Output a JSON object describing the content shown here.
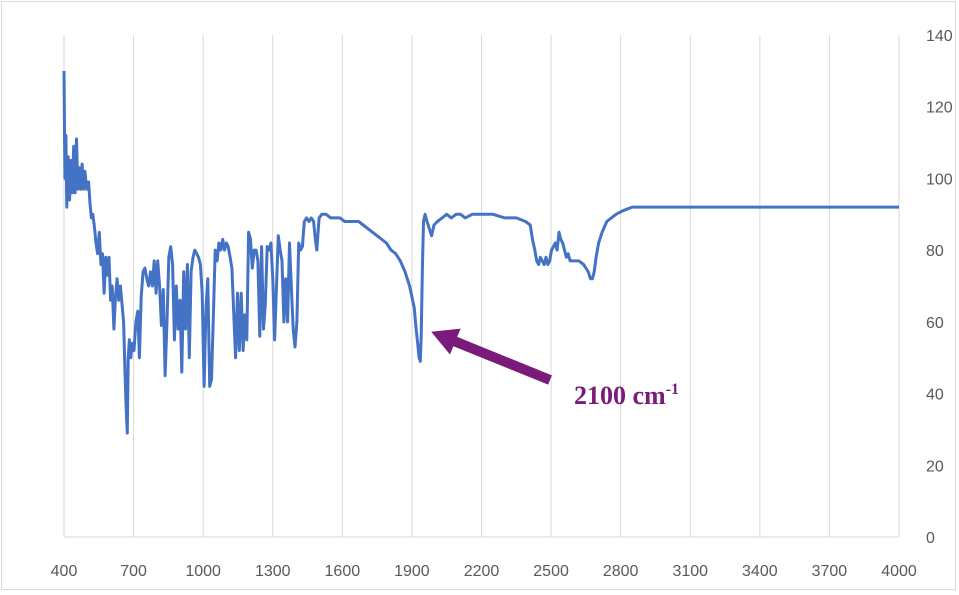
{
  "chart_data": {
    "type": "line",
    "title": "",
    "xlabel": "",
    "ylabel": "",
    "xlim": [
      400,
      4000
    ],
    "ylim": [
      0,
      140
    ],
    "x_ticks": [
      "400",
      "700",
      "1000",
      "1300",
      "1600",
      "1900",
      "2200",
      "2500",
      "2800",
      "3100",
      "3400",
      "3700",
      "4000"
    ],
    "y_ticks": [
      "0",
      "20",
      "40",
      "60",
      "80",
      "100",
      "120",
      "140"
    ],
    "y_axis_side": "right",
    "grid": "vertical",
    "legend": "none",
    "series": [
      {
        "color": "#4472c4",
        "points": [
          [
            400,
            130
          ],
          [
            404,
            100
          ],
          [
            408,
            112
          ],
          [
            412,
            92
          ],
          [
            418,
            106
          ],
          [
            424,
            94
          ],
          [
            430,
            105
          ],
          [
            436,
            96
          ],
          [
            442,
            109
          ],
          [
            448,
            96
          ],
          [
            454,
            111
          ],
          [
            460,
            97
          ],
          [
            466,
            103
          ],
          [
            472,
            97
          ],
          [
            478,
            104
          ],
          [
            484,
            97
          ],
          [
            490,
            102
          ],
          [
            498,
            97
          ],
          [
            506,
            99
          ],
          [
            512,
            93
          ],
          [
            518,
            89
          ],
          [
            524,
            90
          ],
          [
            532,
            86
          ],
          [
            538,
            82
          ],
          [
            545,
            79
          ],
          [
            552,
            85
          ],
          [
            559,
            76
          ],
          [
            566,
            79
          ],
          [
            573,
            68
          ],
          [
            580,
            78
          ],
          [
            587,
            73
          ],
          [
            594,
            78
          ],
          [
            601,
            66
          ],
          [
            608,
            70
          ],
          [
            615,
            58
          ],
          [
            622,
            67
          ],
          [
            629,
            72
          ],
          [
            636,
            66
          ],
          [
            643,
            70
          ],
          [
            650,
            65
          ],
          [
            657,
            60
          ],
          [
            663,
            46
          ],
          [
            667,
            38
          ],
          [
            670,
            33
          ],
          [
            673,
            29
          ],
          [
            677,
            50
          ],
          [
            682,
            55
          ],
          [
            688,
            50
          ],
          [
            694,
            54
          ],
          [
            702,
            52
          ],
          [
            710,
            60
          ],
          [
            718,
            63
          ],
          [
            725,
            50
          ],
          [
            733,
            67
          ],
          [
            741,
            74
          ],
          [
            749,
            75
          ],
          [
            757,
            72
          ],
          [
            765,
            70
          ],
          [
            773,
            74
          ],
          [
            781,
            70
          ],
          [
            789,
            77
          ],
          [
            797,
            68
          ],
          [
            804,
            77
          ],
          [
            812,
            70
          ],
          [
            820,
            59
          ],
          [
            828,
            69
          ],
          [
            836,
            45
          ],
          [
            844,
            60
          ],
          [
            852,
            78
          ],
          [
            860,
            81
          ],
          [
            868,
            76
          ],
          [
            876,
            55
          ],
          [
            884,
            70
          ],
          [
            892,
            58
          ],
          [
            900,
            66
          ],
          [
            908,
            46
          ],
          [
            916,
            74
          ],
          [
            924,
            58
          ],
          [
            932,
            76
          ],
          [
            940,
            50
          ],
          [
            948,
            74
          ],
          [
            956,
            78
          ],
          [
            964,
            80
          ],
          [
            972,
            79
          ],
          [
            980,
            78
          ],
          [
            988,
            76
          ],
          [
            996,
            68
          ],
          [
            1004,
            42
          ],
          [
            1012,
            64
          ],
          [
            1020,
            72
          ],
          [
            1028,
            42
          ],
          [
            1036,
            44
          ],
          [
            1044,
            62
          ],
          [
            1052,
            80
          ],
          [
            1060,
            77
          ],
          [
            1068,
            82
          ],
          [
            1076,
            80
          ],
          [
            1084,
            83
          ],
          [
            1092,
            80
          ],
          [
            1100,
            82
          ],
          [
            1108,
            81
          ],
          [
            1116,
            78
          ],
          [
            1124,
            75
          ],
          [
            1132,
            62
          ],
          [
            1140,
            50
          ],
          [
            1148,
            68
          ],
          [
            1156,
            52
          ],
          [
            1164,
            68
          ],
          [
            1172,
            52
          ],
          [
            1180,
            62
          ],
          [
            1188,
            55
          ],
          [
            1196,
            85
          ],
          [
            1204,
            83
          ],
          [
            1212,
            75
          ],
          [
            1220,
            80
          ],
          [
            1228,
            80
          ],
          [
            1236,
            77
          ],
          [
            1244,
            56
          ],
          [
            1252,
            81
          ],
          [
            1260,
            58
          ],
          [
            1268,
            65
          ],
          [
            1276,
            81
          ],
          [
            1284,
            80
          ],
          [
            1292,
            82
          ],
          [
            1300,
            72
          ],
          [
            1308,
            55
          ],
          [
            1316,
            70
          ],
          [
            1324,
            84
          ],
          [
            1332,
            80
          ],
          [
            1340,
            77
          ],
          [
            1348,
            60
          ],
          [
            1356,
            72
          ],
          [
            1364,
            60
          ],
          [
            1372,
            82
          ],
          [
            1380,
            70
          ],
          [
            1388,
            58
          ],
          [
            1396,
            53
          ],
          [
            1404,
            60
          ],
          [
            1412,
            82
          ],
          [
            1420,
            80
          ],
          [
            1428,
            81
          ],
          [
            1436,
            88
          ],
          [
            1446,
            89
          ],
          [
            1456,
            88
          ],
          [
            1466,
            89
          ],
          [
            1476,
            88
          ],
          [
            1484,
            83
          ],
          [
            1490,
            80
          ],
          [
            1500,
            89
          ],
          [
            1512,
            90
          ],
          [
            1530,
            90
          ],
          [
            1550,
            89
          ],
          [
            1570,
            89
          ],
          [
            1590,
            89
          ],
          [
            1610,
            88
          ],
          [
            1630,
            88
          ],
          [
            1650,
            88
          ],
          [
            1670,
            88
          ],
          [
            1690,
            87
          ],
          [
            1710,
            86
          ],
          [
            1730,
            85
          ],
          [
            1750,
            84
          ],
          [
            1770,
            83
          ],
          [
            1790,
            82
          ],
          [
            1810,
            80
          ],
          [
            1830,
            79
          ],
          [
            1850,
            77
          ],
          [
            1870,
            74
          ],
          [
            1890,
            70
          ],
          [
            1910,
            64
          ],
          [
            1918,
            58
          ],
          [
            1925,
            54
          ],
          [
            1931,
            50
          ],
          [
            1936,
            49
          ],
          [
            1940,
            56
          ],
          [
            1945,
            75
          ],
          [
            1950,
            88
          ],
          [
            1957,
            90
          ],
          [
            1965,
            88
          ],
          [
            1975,
            86
          ],
          [
            1985,
            84
          ],
          [
            1995,
            87
          ],
          [
            2010,
            88
          ],
          [
            2030,
            89
          ],
          [
            2050,
            90
          ],
          [
            2070,
            89
          ],
          [
            2090,
            90
          ],
          [
            2110,
            90
          ],
          [
            2130,
            89
          ],
          [
            2160,
            90
          ],
          [
            2200,
            90
          ],
          [
            2250,
            90
          ],
          [
            2300,
            89
          ],
          [
            2350,
            89
          ],
          [
            2390,
            88
          ],
          [
            2410,
            87
          ],
          [
            2420,
            83
          ],
          [
            2430,
            80
          ],
          [
            2438,
            77
          ],
          [
            2446,
            76
          ],
          [
            2454,
            78
          ],
          [
            2462,
            77
          ],
          [
            2470,
            76
          ],
          [
            2478,
            78
          ],
          [
            2486,
            76
          ],
          [
            2494,
            77
          ],
          [
            2502,
            80
          ],
          [
            2510,
            81
          ],
          [
            2518,
            82
          ],
          [
            2526,
            80
          ],
          [
            2534,
            85
          ],
          [
            2542,
            83
          ],
          [
            2550,
            82
          ],
          [
            2558,
            80
          ],
          [
            2566,
            78
          ],
          [
            2574,
            79
          ],
          [
            2582,
            77
          ],
          [
            2600,
            77
          ],
          [
            2620,
            77
          ],
          [
            2640,
            76
          ],
          [
            2660,
            74
          ],
          [
            2670,
            72
          ],
          [
            2678,
            72
          ],
          [
            2686,
            74
          ],
          [
            2694,
            78
          ],
          [
            2705,
            82
          ],
          [
            2720,
            85
          ],
          [
            2740,
            88
          ],
          [
            2760,
            89
          ],
          [
            2780,
            90
          ],
          [
            2810,
            91
          ],
          [
            2850,
            92
          ],
          [
            2900,
            92
          ],
          [
            3000,
            92
          ],
          [
            3100,
            92
          ],
          [
            3200,
            92
          ],
          [
            3300,
            92
          ],
          [
            3400,
            92
          ],
          [
            3500,
            92
          ],
          [
            3600,
            92
          ],
          [
            3700,
            92
          ],
          [
            3800,
            92
          ],
          [
            3900,
            92
          ],
          [
            4000,
            92
          ]
        ]
      }
    ],
    "annotation": {
      "text": "2100 cm",
      "superscript": "-1",
      "color": "#7a1a7a",
      "points_to_x": 1940,
      "points_to_y": 55
    }
  }
}
